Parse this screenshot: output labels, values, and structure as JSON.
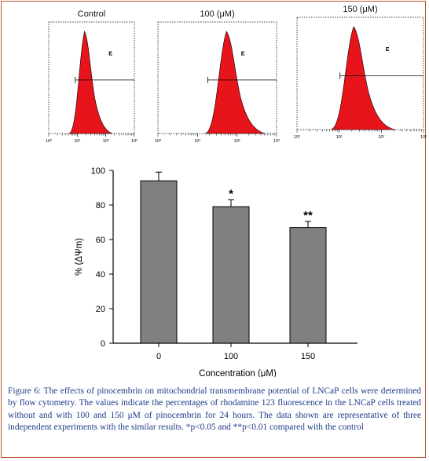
{
  "histograms": [
    {
      "title": "Control",
      "gate_label": "E",
      "ticks": [
        "10⁰",
        "10¹",
        "10²",
        "10³"
      ]
    },
    {
      "title": "100 (μM)",
      "gate_label": "E",
      "ticks": [
        "10⁰",
        "10¹",
        "10²",
        "10³"
      ]
    },
    {
      "title": "150 (μM)",
      "gate_label": "E",
      "ticks": [
        "10⁰",
        "10¹",
        "10²",
        "10³"
      ]
    }
  ],
  "chart_data": {
    "type": "bar",
    "categories": [
      "0",
      "100",
      "150"
    ],
    "values": [
      94,
      79,
      67
    ],
    "errors": [
      5,
      4,
      3.5
    ],
    "significance": [
      "",
      "*",
      "**"
    ],
    "xlabel": "Concentration (μM)",
    "ylabel": "% (ΔΨm)",
    "ylim": [
      0,
      100
    ],
    "yticks": [
      0,
      20,
      40,
      60,
      80,
      100
    ],
    "grid": false,
    "bar_color": "#808080"
  },
  "caption": {
    "label": "Figure 6:",
    "text": " The effects of pinocembrin on mitochondrial transmembrane potential of LNCaP cells were determined by flow cytometry. The values indicate the percentages of rhodamine 123 fluorescence in the LNCaP cells treated without and with 100 and 150 μM of pinocembrin for 24 hours. The data shown are representative of three independent experiments with the similar results. *p<0.05 and **p<0.01 compared with the control"
  },
  "colors": {
    "histogram_fill": "#e8141c",
    "border": "#c05030",
    "caption_text": "#1f3a8a"
  }
}
